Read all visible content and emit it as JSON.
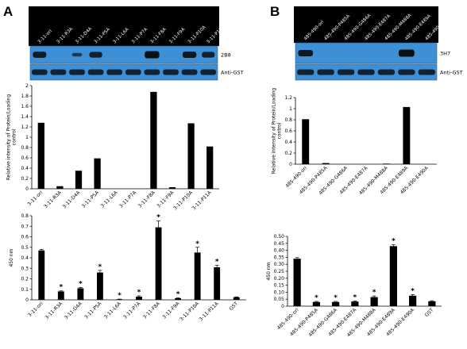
{
  "panels": [
    {
      "letter": "A"
    },
    {
      "letter": "B"
    }
  ],
  "chart_data": [
    {
      "panel": "A",
      "type": "bar",
      "ylabel": "Relative intensity of Protein/Loading control",
      "ylim": [
        0,
        2
      ],
      "yticks": [
        "0",
        "0.2",
        "0.4",
        "0.6",
        "0.8",
        "1",
        "1.2",
        "1.4",
        "1.6",
        "1.8",
        "2"
      ],
      "categories": [
        "3-11-ori",
        "3-11-R3A",
        "3-11-D4A",
        "3-11-P5A",
        "3-11-L6A",
        "3-11-P7A",
        "3-11-F8A",
        "3-11-F9A",
        "3-11-P10A",
        "3-11-P11A"
      ],
      "values": [
        1.28,
        0.05,
        0.35,
        0.59,
        0.0,
        0.0,
        1.88,
        0.03,
        1.27,
        0.82
      ],
      "blot_labels": [
        "2B8",
        "Anti-GST"
      ],
      "blot_top_intensity": [
        0.8,
        0,
        0.25,
        0.7,
        0,
        0,
        1.0,
        0,
        0.85,
        0.7
      ],
      "grid": false
    },
    {
      "panel": "A",
      "type": "bar",
      "ylabel": "450 nm",
      "ylim": [
        0,
        0.8
      ],
      "yticks": [
        "0",
        "0.1",
        "0.2",
        "0.3",
        "0.4",
        "0.5",
        "0.6",
        "0.7",
        "0.8"
      ],
      "categories": [
        "3-11-ori",
        "3-11-R3A",
        "3-11-D4A",
        "3-11-P5A",
        "3-11-L6A",
        "3-11-P7A",
        "3-11-F8A",
        "3-11-F9A",
        "3-11-P10A",
        "3-11-P11A",
        "GST"
      ],
      "values": [
        0.47,
        0.08,
        0.11,
        0.26,
        0.005,
        0.03,
        0.69,
        0.015,
        0.45,
        0.31,
        0.025
      ],
      "errors": [
        0.01,
        0.005,
        0.008,
        0.02,
        0.002,
        0.008,
        0.06,
        0.004,
        0.05,
        0.02,
        0.003
      ],
      "significant": [
        false,
        true,
        true,
        true,
        true,
        true,
        true,
        true,
        true,
        true,
        false
      ],
      "marker": "*",
      "grid": false
    },
    {
      "panel": "B",
      "type": "bar",
      "ylabel": "Relative intensity of Protein/Loading control",
      "ylim": [
        0,
        1.2
      ],
      "yticks": [
        "0",
        "0.2",
        "0.4",
        "0.6",
        "0.8",
        "1",
        "1.2"
      ],
      "categories": [
        "485-490-ori",
        "485-490-P485A",
        "485-490-G486A",
        "485-490-E487A",
        "485-490-M488A",
        "485-490-E489A",
        "485-490-E490A"
      ],
      "values": [
        0.81,
        0.02,
        0.0,
        0.0,
        0.01,
        1.03,
        0.0
      ],
      "blot_labels": [
        "3H7",
        "Anti-GST"
      ],
      "blot_top_intensity": [
        0.85,
        0,
        0,
        0,
        0,
        1.0,
        0
      ],
      "grid": false
    },
    {
      "panel": "B",
      "type": "bar",
      "ylabel": "450 nm",
      "ylim": [
        0,
        0.5
      ],
      "yticks": [
        "0",
        "0.05",
        "0.10",
        "0.15",
        "0.20",
        "0.25",
        "0.30",
        "0.35",
        "0.40",
        "0.45",
        "0.50"
      ],
      "categories": [
        "485-490-ori",
        "485-490-P485A",
        "485-490-G486A",
        "485-490-E487A",
        "485-490-M488A",
        "485-490-E489A",
        "485-490-E490A",
        "GST"
      ],
      "values": [
        0.34,
        0.03,
        0.03,
        0.033,
        0.065,
        0.43,
        0.075,
        0.035
      ],
      "errors": [
        0.008,
        0.004,
        0.004,
        0.004,
        0.008,
        0.01,
        0.008,
        0.004
      ],
      "significant": [
        false,
        true,
        true,
        true,
        true,
        true,
        true,
        false
      ],
      "marker": "*",
      "grid": false
    }
  ]
}
